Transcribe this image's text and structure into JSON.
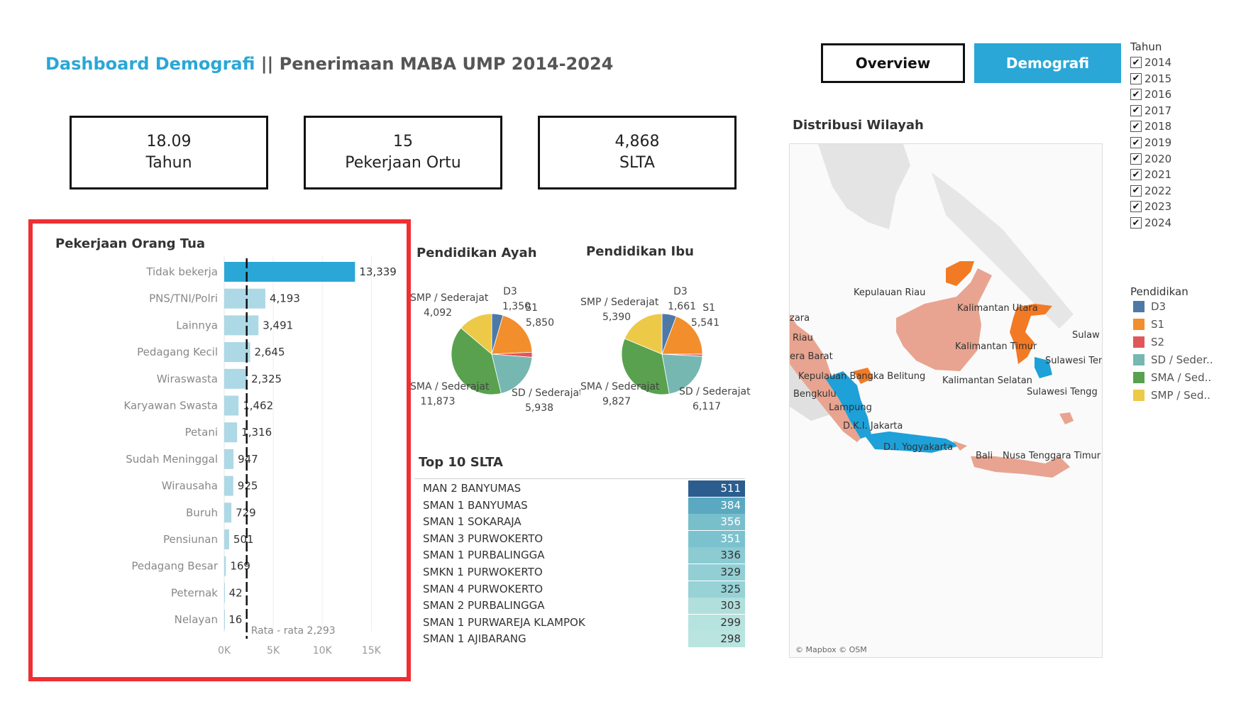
{
  "header": {
    "title_accent": "Dashboard Demografi",
    "title_rest": " || Penerimaan MABA UMP 2014-2024"
  },
  "nav": {
    "overview": "Overview",
    "demografi": "Demografi"
  },
  "kpis": [
    {
      "value": "18.09",
      "label": "Tahun"
    },
    {
      "value": "15",
      "label": "Pekerjaan Ortu"
    },
    {
      "value": "4,868",
      "label": "SLTA"
    }
  ],
  "pekerjaan": {
    "title": "Pekerjaan Orang Tua",
    "ref_label": "Rata - rata 2,293",
    "highlight_color": "#2aa7d6",
    "bar_color": "#add8e6",
    "chart_data": {
      "type": "bar",
      "orientation": "horizontal",
      "categories": [
        "Tidak bekerja",
        "PNS/TNI/Polri",
        "Lainnya",
        "Pedagang Kecil",
        "Wiraswasta",
        "Karyawan Swasta",
        "Petani",
        "Sudah Meninggal",
        "Wirausaha",
        "Buruh",
        "Pensiunan",
        "Pedagang Besar",
        "Peternak",
        "Nelayan"
      ],
      "values": [
        13339,
        4193,
        3491,
        2645,
        2325,
        1462,
        1316,
        947,
        925,
        729,
        501,
        169,
        42,
        16
      ],
      "value_labels": [
        "13,339",
        "4,193",
        "3,491",
        "2,645",
        "2,325",
        "1,462",
        "1,316",
        "947",
        "925",
        "729",
        "501",
        "169",
        "42",
        "16"
      ],
      "xticks": [
        "0K",
        "5K",
        "10K",
        "15K"
      ],
      "xlim": [
        0,
        17800
      ],
      "reference_line": 2293
    }
  },
  "pie_ayah": {
    "title": "Pendidikan Ayah",
    "chart_data": {
      "type": "pie",
      "slices": [
        {
          "name": "D3",
          "value": 1350,
          "label": "1,350",
          "color": "#4e79a7"
        },
        {
          "name": "S1",
          "value": 5850,
          "label": "5,850",
          "color": "#f28e2b"
        },
        {
          "name": "S2",
          "value": 600,
          "color": "#e15759"
        },
        {
          "name": "SD / Sederajat",
          "value": 5938,
          "label": "5,938",
          "color": "#76b7b2"
        },
        {
          "name": "SMA / Sederajat",
          "value": 11873,
          "label": "11,873",
          "color": "#59a14f"
        },
        {
          "name": "SMP / Sederajat",
          "value": 4092,
          "label": "4,092",
          "color": "#edc948"
        }
      ]
    }
  },
  "pie_ibu": {
    "title": "Pendidikan Ibu",
    "chart_data": {
      "type": "pie",
      "slices": [
        {
          "name": "D3",
          "value": 1661,
          "label": "1,661",
          "color": "#4e79a7"
        },
        {
          "name": "S1",
          "value": 5541,
          "label": "5,541",
          "color": "#f28e2b"
        },
        {
          "name": "S2",
          "value": 250,
          "color": "#e15759"
        },
        {
          "name": "SD / Sederajat",
          "value": 6117,
          "label": "6,117",
          "color": "#76b7b2"
        },
        {
          "name": "SMA / Sederajat",
          "value": 9827,
          "label": "9,827",
          "color": "#59a14f"
        },
        {
          "name": "SMP / Sederajat",
          "value": 5390,
          "label": "5,390",
          "color": "#edc948"
        }
      ]
    }
  },
  "slta": {
    "title": "Top 10 SLTA",
    "rows": [
      {
        "name": "MAN 2 BANYUMAS",
        "value": "511",
        "color": "#2c5d8f",
        "text_color": "#ffffff"
      },
      {
        "name": "SMAN 1 BANYUMAS",
        "value": "384",
        "color": "#5aa9c0",
        "text_color": "#ffffff"
      },
      {
        "name": "SMAN 1 SOKARAJA",
        "value": "356",
        "color": "#78bfcc",
        "text_color": "#ffffff"
      },
      {
        "name": "SMAN 3 PURWOKERTO",
        "value": "351",
        "color": "#7cc2ce",
        "text_color": "#ffffff"
      },
      {
        "name": "SMAN 1 PURBALINGGA",
        "value": "336",
        "color": "#8ccbd2",
        "text_color": "#333333"
      },
      {
        "name": "SMKN 1 PURWOKERTO",
        "value": "329",
        "color": "#92cfd5",
        "text_color": "#333333"
      },
      {
        "name": "SMAN 4 PURWOKERTO",
        "value": "325",
        "color": "#96d2d6",
        "text_color": "#333333"
      },
      {
        "name": "SMAN 2 PURBALINGGA",
        "value": "303",
        "color": "#b0dfdc",
        "text_color": "#333333"
      },
      {
        "name": "SMAN 1 PURWAREJA KLAMPOK",
        "value": "299",
        "color": "#b7e3de",
        "text_color": "#333333"
      },
      {
        "name": "SMAN 1 AJIBARANG",
        "value": "298",
        "color": "#b9e4df",
        "text_color": "#333333"
      }
    ]
  },
  "map": {
    "title": "Distribusi Wilayah",
    "attribution": "© Mapbox © OSM",
    "labels": [
      "Kepulauan Riau",
      "Kalimantan Utara",
      "Sulaw",
      "zara",
      "Riau",
      "Kalimantan Timur",
      "era Barat",
      "Sulawesi Ten",
      "Kepulauan Bangka Belitung",
      "Kalimantan Selatan",
      "Bengkulu",
      "Sulawesi Tengg",
      "Lampung",
      "D.K.I. Jakarta",
      "D.I. Yogyakarta",
      "Bali",
      "Nusa Tenggara Timur"
    ]
  },
  "filter_tahun": {
    "title": "Tahun",
    "check_glyph": "✔",
    "years": [
      "2014",
      "2015",
      "2016",
      "2017",
      "2018",
      "2019",
      "2020",
      "2021",
      "2022",
      "2023",
      "2024"
    ]
  },
  "legend_pendidikan": {
    "title": "Pendidikan",
    "items": [
      {
        "label": "D3",
        "color": "#4e79a7"
      },
      {
        "label": "S1",
        "color": "#f28e2b"
      },
      {
        "label": "S2",
        "color": "#e15759"
      },
      {
        "label": "SD / Seder..",
        "color": "#76b7b2"
      },
      {
        "label": "SMA / Sed..",
        "color": "#59a14f"
      },
      {
        "label": "SMP / Sed..",
        "color": "#edc948"
      }
    ]
  }
}
